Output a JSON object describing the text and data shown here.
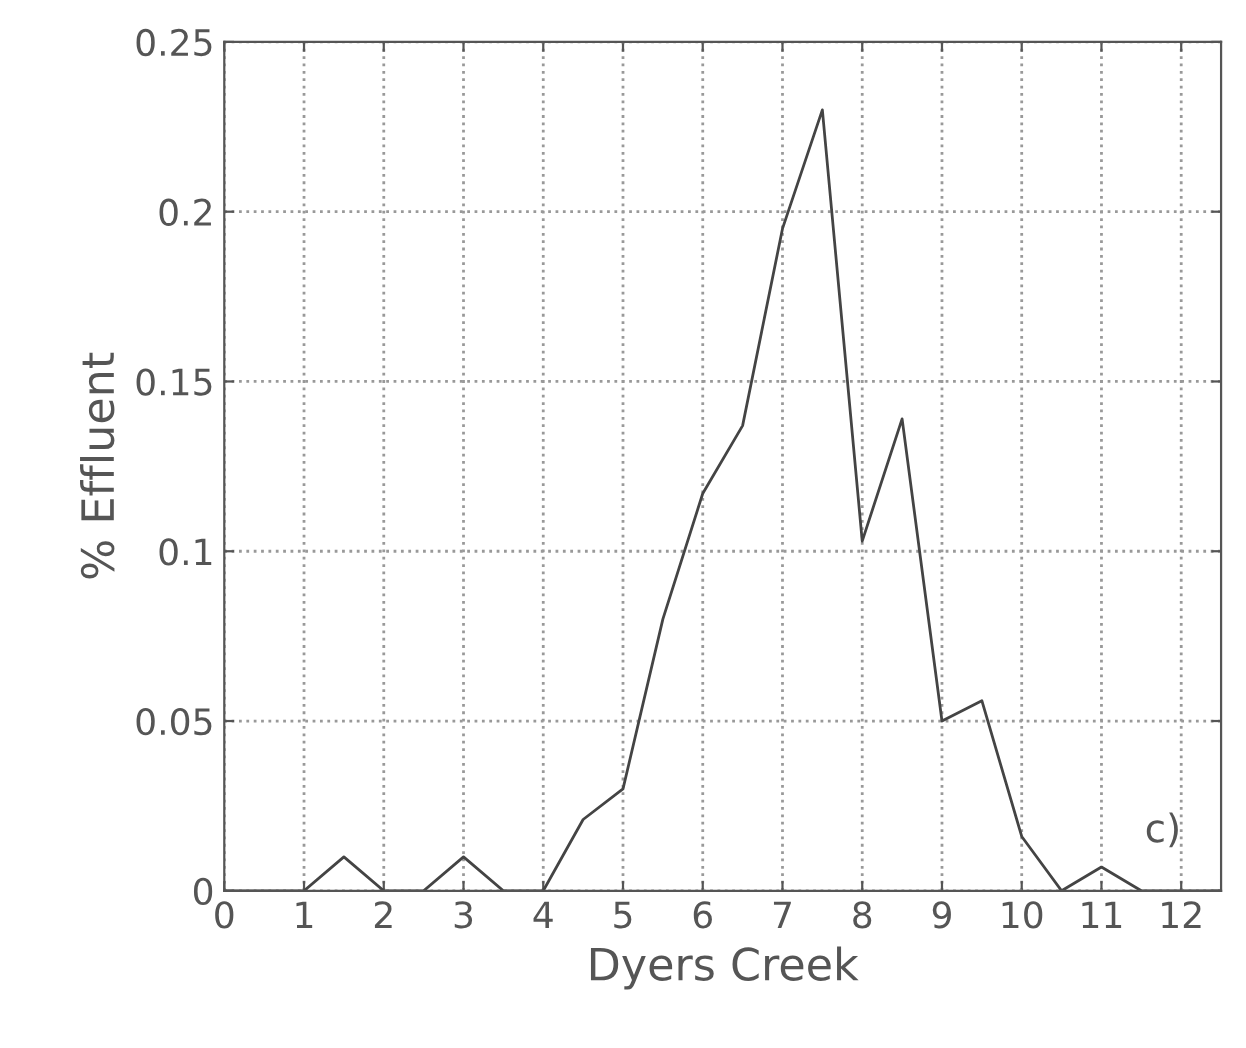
{
  "chart_data": {
    "type": "line",
    "xlabel": "Dyers Creek",
    "ylabel": "% Effluent",
    "annotations": [
      "c)"
    ],
    "x": [
      0,
      0.5,
      1,
      1.5,
      2,
      2.5,
      3,
      3.5,
      4,
      4.5,
      5,
      5.5,
      6,
      6.5,
      7,
      7.5,
      8,
      8.5,
      9,
      9.5,
      10,
      10.5,
      11,
      11.5,
      12,
      12.5
    ],
    "series": [
      {
        "color": "#444444",
        "values": [
          0,
          0,
          0,
          0.01,
          0,
          0,
          0.01,
          0,
          0,
          0.021,
          0.03,
          0.08,
          0.117,
          0.137,
          0.195,
          0.23,
          0.103,
          0.139,
          0.05,
          0.056,
          0.016,
          0,
          0.007,
          0,
          0,
          0
        ]
      }
    ],
    "xlim": [
      0,
      12.5
    ],
    "ylim": [
      0,
      0.25
    ],
    "xticks": [
      0,
      1,
      2,
      3,
      4,
      5,
      6,
      7,
      8,
      9,
      10,
      11,
      12
    ],
    "yticks": [
      0,
      0.05,
      0.1,
      0.15,
      0.2,
      0.25
    ],
    "grid": true,
    "line_style": "solid",
    "marker": "none",
    "legend": false
  }
}
